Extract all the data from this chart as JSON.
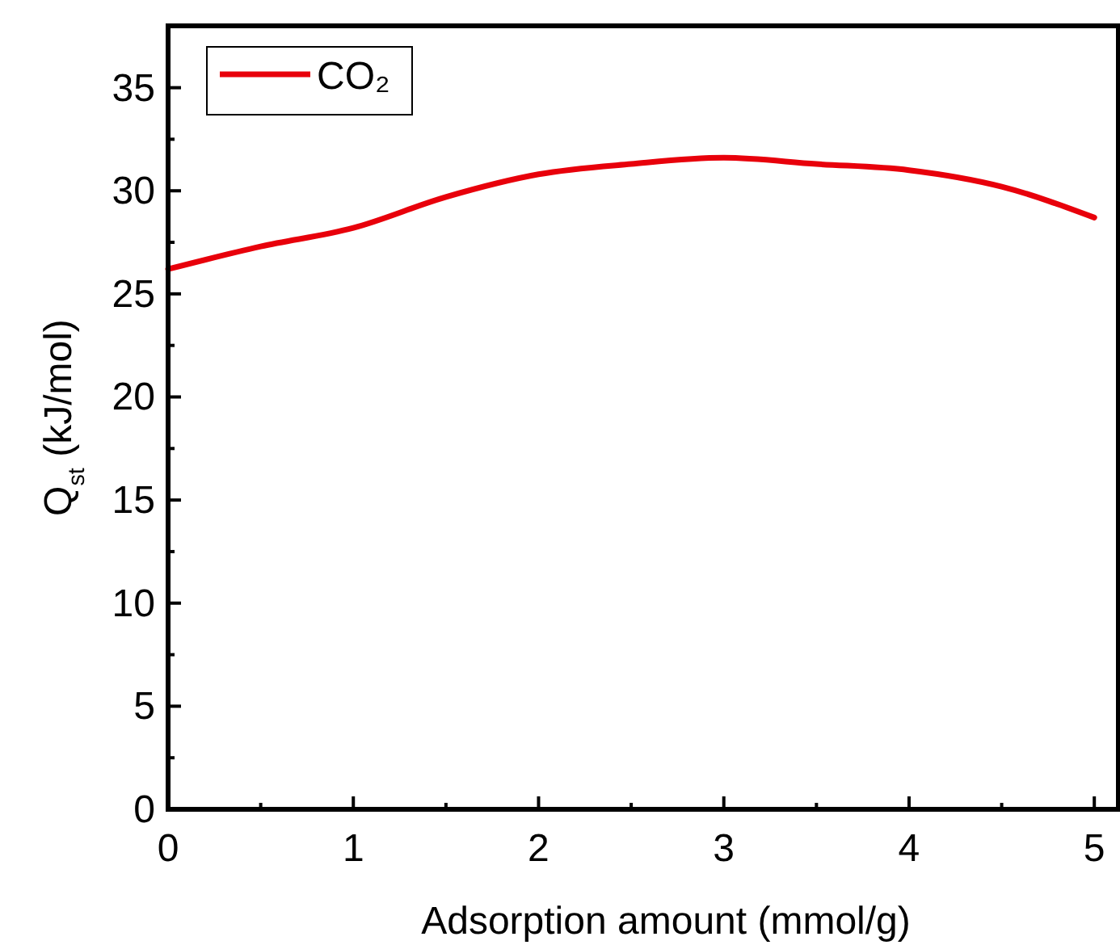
{
  "chart_data": {
    "type": "line",
    "xlabel": "Adsorption amount (mmol/g)",
    "ylabel": "Q$_{st}$ (kJ/mol)",
    "x": [
      0,
      0.5,
      1,
      1.5,
      2,
      2.5,
      3,
      3.5,
      4,
      4.5,
      5
    ],
    "series": [
      {
        "name": "CO₂",
        "color": "#e8000b",
        "values": [
          26.2,
          27.3,
          28.2,
          29.7,
          30.8,
          31.3,
          31.6,
          31.3,
          31.0,
          30.2,
          28.7
        ]
      }
    ],
    "xlim": [
      0,
      5.13
    ],
    "ylim": [
      0,
      38
    ],
    "xticks": [
      0,
      {
        "value": 0.5,
        "label": null
      },
      1,
      {
        "value": 1.5,
        "label": null
      },
      2,
      {
        "value": 2.5,
        "label": null
      },
      3,
      {
        "value": 3.5,
        "label": null
      },
      4,
      {
        "value": 4.5,
        "label": null
      },
      5
    ],
    "yticks": [
      0,
      {
        "value": 2.5,
        "label": null
      },
      5,
      {
        "value": 7.5,
        "label": null
      },
      10,
      {
        "value": 12.5,
        "label": null
      },
      15,
      {
        "value": 17.5,
        "label": null
      },
      20,
      {
        "value": 22.5,
        "label": null
      },
      25,
      {
        "value": 27.5,
        "label": null
      },
      30,
      {
        "value": 32.5,
        "label": null
      },
      35
    ],
    "legend": "top left",
    "grid": false,
    "marker": "none",
    "line_style": "solid"
  }
}
